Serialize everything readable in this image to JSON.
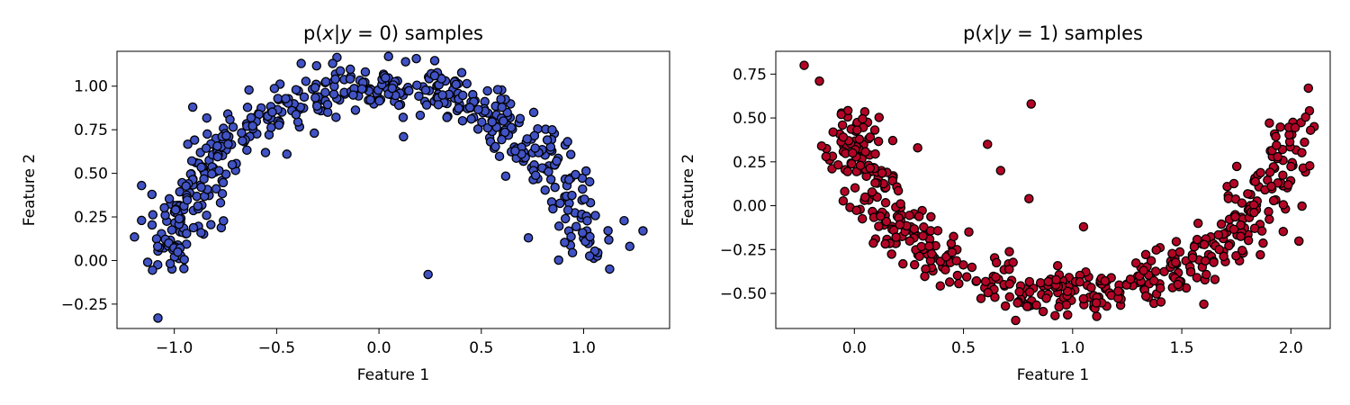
{
  "chart_data": [
    {
      "type": "scatter",
      "title_prefix": "p(",
      "title_var_x": "x",
      "title_bar": "|",
      "title_var_y": "y",
      "title_eq": " = 0",
      "title_suffix": ") samples",
      "xlabel": "Feature 1",
      "ylabel": "Feature 2",
      "xlim": [
        -1.28,
        1.42
      ],
      "ylim": [
        -0.39,
        1.2
      ],
      "xticks": [
        -1.0,
        -0.5,
        0.0,
        0.5,
        1.0
      ],
      "xtick_labels": [
        "−1.0",
        "−0.5",
        "0.0",
        "0.5",
        "1.0"
      ],
      "yticks": [
        -0.25,
        0.0,
        0.25,
        0.5,
        0.75,
        1.0
      ],
      "ytick_labels": [
        "−0.25",
        "0.00",
        "0.25",
        "0.50",
        "0.75",
        "1.00"
      ],
      "marker_color": "#4052c4",
      "edge_color": "#000000",
      "generator": {
        "shape": "upper-moon",
        "n": 500,
        "noise": 0.07,
        "seed": 11
      },
      "outliers": [
        [
          -1.16,
          0.43
        ],
        [
          -1.16,
          0.23
        ],
        [
          -1.13,
          -0.01
        ],
        [
          -1.08,
          -0.33
        ],
        [
          -0.91,
          0.88
        ],
        [
          -0.38,
          1.13
        ],
        [
          0.13,
          1.14
        ],
        [
          0.24,
          -0.08
        ],
        [
          1.29,
          0.17
        ],
        [
          -0.45,
          0.61
        ],
        [
          0.12,
          0.71
        ],
        [
          0.73,
          0.13
        ]
      ]
    },
    {
      "type": "scatter",
      "title_prefix": "p(",
      "title_var_x": "x",
      "title_bar": "|",
      "title_var_y": "y",
      "title_eq": " = 1",
      "title_suffix": ") samples",
      "xlabel": "Feature 1",
      "ylabel": "Feature 2",
      "xlim": [
        -0.36,
        2.18
      ],
      "ylim": [
        -0.7,
        0.88
      ],
      "xticks": [
        0.0,
        0.5,
        1.0,
        1.5,
        2.0
      ],
      "xtick_labels": [
        "0.0",
        "0.5",
        "1.0",
        "1.5",
        "2.0"
      ],
      "yticks": [
        -0.5,
        -0.25,
        0.0,
        0.25,
        0.5,
        0.75
      ],
      "ytick_labels": [
        "−0.50",
        "−0.25",
        "0.00",
        "0.25",
        "0.50",
        "0.75"
      ],
      "marker_color": "#b40426",
      "edge_color": "#000000",
      "generator": {
        "shape": "lower-moon",
        "n": 500,
        "noise": 0.07,
        "seed": 23
      },
      "outliers": [
        [
          -0.23,
          0.8
        ],
        [
          -0.16,
          0.71
        ],
        [
          -0.15,
          0.34
        ],
        [
          -0.13,
          0.28
        ],
        [
          -0.06,
          0.52
        ],
        [
          0.29,
          0.33
        ],
        [
          0.61,
          0.35
        ],
        [
          0.67,
          0.2
        ],
        [
          0.81,
          0.58
        ],
        [
          0.8,
          0.04
        ],
        [
          1.05,
          -0.12
        ],
        [
          1.86,
          -0.28
        ],
        [
          2.08,
          0.67
        ],
        [
          2.09,
          0.43
        ]
      ]
    }
  ]
}
